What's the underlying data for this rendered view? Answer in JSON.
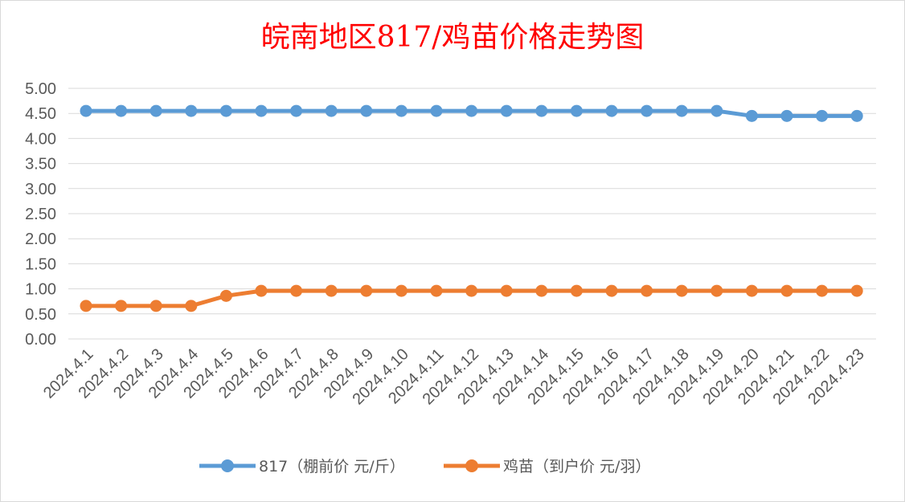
{
  "chart_data": {
    "type": "line",
    "title": "皖南地区817/鸡苗价格走势图",
    "categories": [
      "2024.4.1",
      "2024.4.2",
      "2024.4.3",
      "2024.4.4",
      "2024.4.5",
      "2024.4.6",
      "2024.4.7",
      "2024.4.8",
      "2024.4.9",
      "2024.4.10",
      "2024.4.11",
      "2024.4.12",
      "2024.4.13",
      "2024.4.14",
      "2024.4.15",
      "2024.4.16",
      "2024.4.17",
      "2024.4.18",
      "2024.4.19",
      "2024.4.20",
      "2024.4.21",
      "2024.4.22",
      "2024.4.23"
    ],
    "series": [
      {
        "name": "817（棚前价 元/斤）",
        "color": "#5b9bd5",
        "values": [
          4.55,
          4.55,
          4.55,
          4.55,
          4.55,
          4.55,
          4.55,
          4.55,
          4.55,
          4.55,
          4.55,
          4.55,
          4.55,
          4.55,
          4.55,
          4.55,
          4.55,
          4.55,
          4.55,
          4.45,
          4.45,
          4.45,
          4.45
        ]
      },
      {
        "name": "鸡苗（到户价 元/羽）",
        "color": "#ed7d31",
        "values": [
          0.66,
          0.66,
          0.66,
          0.66,
          0.86,
          0.96,
          0.96,
          0.96,
          0.96,
          0.96,
          0.96,
          0.96,
          0.96,
          0.96,
          0.96,
          0.96,
          0.96,
          0.96,
          0.96,
          0.96,
          0.96,
          0.96,
          0.96
        ]
      }
    ],
    "yticks": [
      "0.00",
      "0.50",
      "1.00",
      "1.50",
      "2.00",
      "2.50",
      "3.00",
      "3.50",
      "4.00",
      "4.50",
      "5.00"
    ],
    "ylim": [
      0,
      5
    ],
    "grid": true,
    "legend": "bottom"
  }
}
